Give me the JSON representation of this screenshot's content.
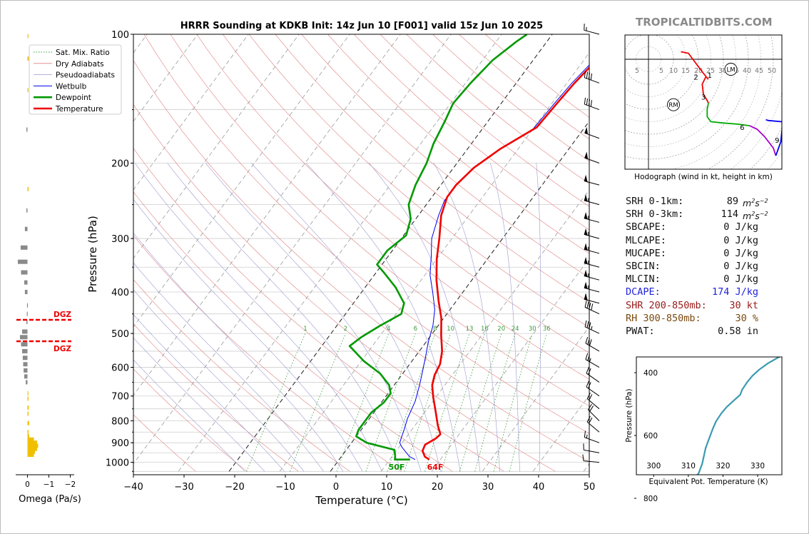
{
  "window": {
    "site": "TROPICALTIDBITS.COM"
  },
  "chart_data": [
    {
      "type": "line",
      "title": "HRRR Sounding at KDKB Init: 14z Jun 10 [F001] valid 15z Jun 10 2025",
      "xlabel": "Temperature (°C)",
      "ylabel": "Pressure (hPa)",
      "xlim": [
        -40,
        50
      ],
      "ylim": [
        1050,
        100
      ],
      "y_scale": "log",
      "x_ticks": [
        "−40",
        "−30",
        "−20",
        "−10",
        "0",
        "10",
        "20",
        "30",
        "40",
        "50"
      ],
      "y_ticks": [
        "100",
        "200",
        "300",
        "400",
        "500",
        "600",
        "700",
        "800",
        "900",
        "1000"
      ],
      "grid": true,
      "legend_position": "top-left",
      "legend": [
        "Sat. Mix. Ratio",
        "Dry Adiabats",
        "Pseudoadiabats",
        "Wetbulb",
        "Dewpoint",
        "Temperature"
      ],
      "mixing_ratio_labels": [
        "1",
        "2",
        "4",
        "6",
        "8",
        "10",
        "13",
        "16",
        "20",
        "24",
        "30",
        "36"
      ],
      "surface_labels": {
        "dewpoint": "50F",
        "temperature": "64F"
      },
      "series": [
        {
          "name": "Temperature",
          "color": "#ee0000",
          "points": [
            [
              17.8,
              985
            ],
            [
              16.5,
              970
            ],
            [
              15.2,
              940
            ],
            [
              14.8,
              910
            ],
            [
              16.0,
              880
            ],
            [
              16.3,
              860
            ],
            [
              14.5,
              820
            ],
            [
              12.0,
              760
            ],
            [
              9.5,
              705
            ],
            [
              7.5,
              660
            ],
            [
              6.5,
              625
            ],
            [
              6.0,
              590
            ],
            [
              4.5,
              550
            ],
            [
              2.0,
              505
            ],
            [
              -0.5,
              460
            ],
            [
              -3.5,
              420
            ],
            [
              -7.0,
              375
            ],
            [
              -10.0,
              335
            ],
            [
              -12.5,
              300
            ],
            [
              -15.5,
              265
            ],
            [
              -17.0,
              240
            ],
            [
              -17.0,
              225
            ],
            [
              -16.0,
              205
            ],
            [
              -13.5,
              185
            ],
            [
              -9.5,
              165
            ],
            [
              -9.0,
              145
            ],
            [
              -8.5,
              130
            ],
            [
              -7.5,
              115
            ],
            [
              -5.5,
              104
            ],
            [
              -3.0,
              97
            ]
          ]
        },
        {
          "name": "Wetbulb",
          "color": "#0000ee",
          "points": [
            [
              15.0,
              985
            ],
            [
              13.5,
              970
            ],
            [
              12.0,
              945
            ],
            [
              10.5,
              920
            ],
            [
              9.5,
              900
            ],
            [
              9.0,
              870
            ],
            [
              8.5,
              840
            ],
            [
              7.5,
              790
            ],
            [
              6.5,
              720
            ],
            [
              5.0,
              660
            ],
            [
              3.5,
              610
            ],
            [
              2.0,
              565
            ],
            [
              0.5,
              525
            ],
            [
              -1.0,
              480
            ],
            [
              -3.0,
              440
            ],
            [
              -6.0,
              400
            ],
            [
              -9.0,
              365
            ],
            [
              -11.5,
              330
            ],
            [
              -14.0,
              300
            ],
            [
              -16.0,
              265
            ],
            [
              -17.0,
              245
            ],
            [
              -17.0,
              225
            ],
            [
              -16.0,
              205
            ],
            [
              -13.5,
              185
            ],
            [
              -10.0,
              168
            ],
            [
              -9.5,
              145
            ],
            [
              -9.0,
              130
            ],
            [
              -8.0,
              115
            ],
            [
              -6.0,
              105
            ],
            [
              -4.0,
              100
            ]
          ]
        },
        {
          "name": "Dewpoint",
          "color": "#009900",
          "points": [
            [
              14.0,
              985
            ],
            [
              11.0,
              985
            ],
            [
              10.5,
              965
            ],
            [
              9.5,
              935
            ],
            [
              3.0,
              900
            ],
            [
              0.0,
              870
            ],
            [
              -0.5,
              840
            ],
            [
              -0.5,
              800
            ],
            [
              -0.5,
              765
            ],
            [
              0.5,
              725
            ],
            [
              0.5,
              690
            ],
            [
              -1.0,
              660
            ],
            [
              -4.5,
              620
            ],
            [
              -9.5,
              580
            ],
            [
              -14.5,
              535
            ],
            [
              -13.5,
              510
            ],
            [
              -11.5,
              480
            ],
            [
              -9.0,
              450
            ],
            [
              -10.0,
              425
            ],
            [
              -14.0,
              390
            ],
            [
              -18.5,
              360
            ],
            [
              -21.0,
              345
            ],
            [
              -21.0,
              320
            ],
            [
              -19.5,
              295
            ],
            [
              -21.0,
              270
            ],
            [
              -23.5,
              250
            ],
            [
              -25.0,
              225
            ],
            [
              -26.0,
              200
            ],
            [
              -27.5,
              180
            ],
            [
              -28.5,
              160
            ],
            [
              -29.5,
              145
            ],
            [
              -29.0,
              130
            ],
            [
              -28.0,
              115
            ],
            [
              -26.0,
              104
            ],
            [
              -25.0,
              100
            ]
          ]
        }
      ]
    },
    {
      "type": "line",
      "title": "Hodograph (wind in kt, height in km)",
      "ring_labels": [
        "5",
        "5",
        "10",
        "15",
        "20",
        "25",
        "30",
        "35",
        "40",
        "45",
        "50"
      ],
      "height_labels": [
        "1",
        "2",
        "3",
        "6",
        "9"
      ],
      "motion_labels": [
        "LM",
        "RM"
      ],
      "series": [
        {
          "name": "0-1 km",
          "color": "#ee0000",
          "points": [
            [
              13,
              3
            ],
            [
              16,
              2.4
            ],
            [
              18.5,
              -1
            ],
            [
              21.5,
              -5
            ],
            [
              23.5,
              -7.5
            ],
            [
              24,
              -8
            ]
          ]
        },
        {
          "name": "1-3 km",
          "color": "#ee0000",
          "points": [
            [
              23,
              -7
            ],
            [
              21.5,
              -10
            ],
            [
              22,
              -14
            ],
            [
              23.5,
              -16.5
            ],
            [
              24,
              -17.5
            ]
          ]
        },
        {
          "name": "3-6 km",
          "color": "#00aa00",
          "points": [
            [
              24,
              -17.5
            ],
            [
              23.5,
              -20
            ],
            [
              23.5,
              -23
            ],
            [
              25,
              -25
            ],
            [
              30,
              -25.5
            ],
            [
              36,
              -26
            ],
            [
              40.5,
              -26.6
            ]
          ]
        },
        {
          "name": "6-9 km",
          "color": "#aa00cc",
          "points": [
            [
              40.5,
              -26.6
            ],
            [
              43.5,
              -28
            ],
            [
              46.5,
              -31
            ],
            [
              50,
              -35.5
            ],
            [
              51,
              -38.6
            ]
          ]
        },
        {
          "name": "9+ km",
          "color": "#0000ee",
          "points": [
            [
              51,
              -38.6
            ],
            [
              53,
              -33
            ],
            [
              53.5,
              -28
            ],
            [
              53.5,
              -25
            ],
            [
              48,
              -24.5
            ],
            [
              47,
              -24.2
            ]
          ]
        }
      ]
    },
    {
      "type": "line",
      "xlabel": "Equivalent Pot. Temperature (K)",
      "ylabel": "Pressure (hPa)",
      "x_ticks": [
        "300",
        "310",
        "320",
        "330"
      ],
      "y_ticks": [
        "400",
        "600",
        "800"
      ],
      "xlim": [
        295,
        337
      ],
      "ylim": [
        1000,
        300
      ],
      "series": [
        {
          "name": "Theta-e",
          "color": "#3a9ab0",
          "points": [
            [
              315.3,
              973
            ],
            [
              314,
              975
            ],
            [
              312,
              975
            ],
            [
              311,
              965
            ],
            [
              310,
              940
            ],
            [
              308,
              930
            ],
            [
              306.5,
              905
            ],
            [
              306,
              880
            ],
            [
              307,
              860
            ],
            [
              308,
              820
            ],
            [
              309,
              800
            ],
            [
              310,
              775
            ],
            [
              311,
              745
            ],
            [
              313,
              720
            ],
            [
              314,
              690
            ],
            [
              314.5,
              665
            ],
            [
              315,
              640
            ],
            [
              316,
              610
            ],
            [
              317,
              580
            ],
            [
              318,
              555
            ],
            [
              319.5,
              530
            ],
            [
              321,
              510
            ],
            [
              323,
              490
            ],
            [
              325,
              470
            ],
            [
              325.5,
              455
            ],
            [
              327,
              430
            ],
            [
              328.5,
              410
            ],
            [
              330.5,
              390
            ],
            [
              333,
              370
            ],
            [
              337,
              345
            ]
          ]
        }
      ]
    },
    {
      "type": "bar",
      "xlabel": "Omega (Pa/s)",
      "x_ticks": [
        "0",
        "−1",
        "−2"
      ],
      "dgz_label": "DGZ",
      "series": [
        {
          "name": "Omega",
          "points": [
            [
              -0.3,
              960
            ],
            [
              -0.35,
              945
            ],
            [
              -0.45,
              930
            ],
            [
              -0.5,
              915
            ],
            [
              -0.45,
              900
            ],
            [
              -0.3,
              885
            ],
            [
              -0.08,
              870
            ],
            [
              -0.05,
              850
            ],
            [
              -0.08,
              810
            ],
            [
              -0.05,
              770
            ],
            [
              -0.06,
              745
            ],
            [
              -0.05,
              710
            ],
            [
              -0.03,
              690
            ],
            [
              0.08,
              650
            ],
            [
              0.15,
              630
            ],
            [
              0.18,
              610
            ],
            [
              0.2,
              590
            ],
            [
              0.22,
              570
            ],
            [
              0.25,
              550
            ],
            [
              0.3,
              530
            ],
            [
              0.35,
              510
            ],
            [
              0.25,
              495
            ],
            [
              0.05,
              470
            ],
            [
              0.03,
              450
            ],
            [
              0.02,
              430
            ],
            [
              0.12,
              400
            ],
            [
              0.15,
              380
            ],
            [
              0.3,
              360
            ],
            [
              0.45,
              340
            ],
            [
              0.32,
              315
            ],
            [
              0.12,
              285
            ],
            [
              0.05,
              258
            ],
            [
              -0.05,
              230
            ],
            [
              0.05,
              167
            ],
            [
              -0.03,
              135
            ],
            [
              -0.06,
              114
            ],
            [
              -0.03,
              101
            ]
          ]
        }
      ]
    }
  ],
  "params": [
    {
      "label": "SRH 0-1km:",
      "value": "89",
      "unit": "m2s-2",
      "color": "#111111"
    },
    {
      "label": "SRH 0-3km:",
      "value": "114",
      "unit": "m2s-2",
      "color": "#111111"
    },
    {
      "label": "SBCAPE:",
      "value": "0 J/kg",
      "unit": "",
      "color": "#111111"
    },
    {
      "label": "MLCAPE:",
      "value": "0 J/kg",
      "unit": "",
      "color": "#111111"
    },
    {
      "label": "MUCAPE:",
      "value": "0 J/kg",
      "unit": "",
      "color": "#111111"
    },
    {
      "label": "SBCIN:",
      "value": "0 J/kg",
      "unit": "",
      "color": "#111111"
    },
    {
      "label": "MLCIN:",
      "value": "0 J/kg",
      "unit": "",
      "color": "#111111"
    },
    {
      "label": "DCAPE:",
      "value": "174 J/kg",
      "unit": "",
      "color": "#2222dd"
    },
    {
      "label": "SHR 200-850mb:",
      "value": "30 kt",
      "unit": "",
      "color": "#9a1a1a"
    },
    {
      "label": "RH 300-850mb:",
      "value": "30 %",
      "unit": "",
      "color": "#7a4a10"
    },
    {
      "label": "PWAT:",
      "value": "0.58 in",
      "unit": "",
      "color": "#111111"
    }
  ],
  "wind_barbs": [
    {
      "p": 100,
      "speed": 15,
      "dir": 285
    },
    {
      "p": 130,
      "speed": 40,
      "dir": 290
    },
    {
      "p": 150,
      "speed": 40,
      "dir": 290
    },
    {
      "p": 175,
      "speed": 50,
      "dir": 290
    },
    {
      "p": 200,
      "speed": 50,
      "dir": 290
    },
    {
      "p": 225,
      "speed": 50,
      "dir": 285
    },
    {
      "p": 250,
      "speed": 55,
      "dir": 285
    },
    {
      "p": 275,
      "speed": 55,
      "dir": 285
    },
    {
      "p": 300,
      "speed": 55,
      "dir": 285
    },
    {
      "p": 325,
      "speed": 55,
      "dir": 285
    },
    {
      "p": 350,
      "speed": 55,
      "dir": 285
    },
    {
      "p": 375,
      "speed": 55,
      "dir": 285
    },
    {
      "p": 400,
      "speed": 55,
      "dir": 285
    },
    {
      "p": 425,
      "speed": 50,
      "dir": 285
    },
    {
      "p": 450,
      "speed": 40,
      "dir": 295
    },
    {
      "p": 500,
      "speed": 35,
      "dir": 295
    },
    {
      "p": 550,
      "speed": 30,
      "dir": 300
    },
    {
      "p": 600,
      "speed": 25,
      "dir": 300
    },
    {
      "p": 650,
      "speed": 20,
      "dir": 305
    },
    {
      "p": 700,
      "speed": 20,
      "dir": 305
    },
    {
      "p": 750,
      "speed": 20,
      "dir": 310
    },
    {
      "p": 800,
      "speed": 20,
      "dir": 315
    },
    {
      "p": 850,
      "speed": 20,
      "dir": 310
    },
    {
      "p": 900,
      "speed": 15,
      "dir": 290
    },
    {
      "p": 950,
      "speed": 10,
      "dir": 280
    },
    {
      "p": 1000,
      "speed": 10,
      "dir": 275
    }
  ]
}
